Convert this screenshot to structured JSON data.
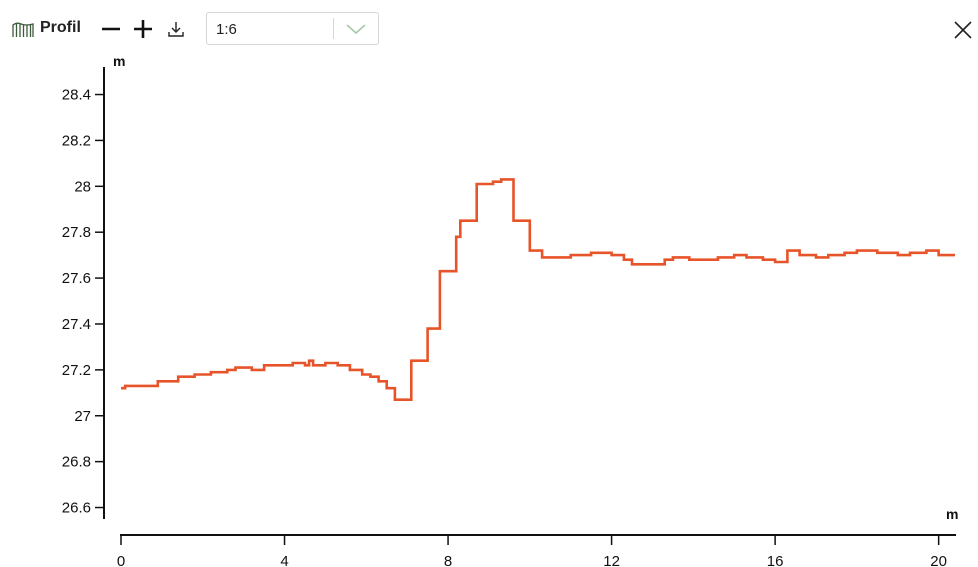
{
  "toolbar": {
    "title": "Profil",
    "title_icon": "profile-chart-icon",
    "zoom_out_icon": "minus-icon",
    "zoom_in_icon": "plus-icon",
    "download_icon": "download-icon",
    "scale_value": "1:6",
    "close_icon": "close-icon"
  },
  "colors": {
    "line": "#e8542a",
    "axis": "#111111",
    "chevron": "#a8c9a8"
  },
  "chart_data": {
    "type": "line",
    "title": "",
    "xlabel": "m",
    "ylabel": "m",
    "xlim": [
      0,
      20.4
    ],
    "ylim": [
      26.55,
      28.52
    ],
    "x_ticks": [
      0,
      4,
      8,
      12,
      16,
      20
    ],
    "x_tick_labels": [
      "0",
      "4",
      "8",
      "12",
      "16",
      "20"
    ],
    "y_ticks": [
      26.6,
      26.8,
      27.0,
      27.2,
      27.4,
      27.6,
      27.8,
      28.0,
      28.2,
      28.4
    ],
    "y_tick_labels": [
      "26.6",
      "26.8",
      "27",
      "27.2",
      "27.4",
      "27.6",
      "27.8",
      "28",
      "28.2",
      "28.4"
    ],
    "grid": false,
    "series": [
      {
        "step": true,
        "x": [
          0.0,
          0.1,
          0.5,
          0.9,
          1.3,
          1.4,
          1.8,
          2.2,
          2.6,
          2.8,
          3.2,
          3.5,
          3.9,
          4.2,
          4.5,
          4.6,
          4.7,
          5.0,
          5.3,
          5.6,
          5.9,
          6.1,
          6.3,
          6.5,
          6.7,
          7.1,
          7.5,
          7.8,
          8.0,
          8.2,
          8.3,
          8.4,
          8.7,
          9.1,
          9.3,
          9.6,
          10.0,
          10.3,
          11.0,
          11.5,
          12.0,
          12.3,
          12.5,
          13.0,
          13.3,
          13.5,
          13.9,
          14.2,
          14.6,
          15.0,
          15.3,
          15.7,
          16.0,
          16.3,
          16.6,
          17.0,
          17.3,
          17.7,
          18.0,
          18.5,
          19.0,
          19.3,
          19.7,
          20.0,
          20.4
        ],
        "y": [
          27.12,
          27.13,
          27.13,
          27.15,
          27.15,
          27.17,
          27.18,
          27.19,
          27.2,
          27.21,
          27.2,
          27.22,
          27.22,
          27.23,
          27.22,
          27.24,
          27.22,
          27.23,
          27.22,
          27.2,
          27.18,
          27.17,
          27.15,
          27.12,
          27.07,
          27.24,
          27.38,
          27.63,
          27.63,
          27.78,
          27.85,
          27.85,
          28.01,
          28.02,
          28.03,
          27.85,
          27.72,
          27.69,
          27.7,
          27.71,
          27.7,
          27.68,
          27.66,
          27.66,
          27.68,
          27.69,
          27.68,
          27.68,
          27.69,
          27.7,
          27.69,
          27.68,
          27.67,
          27.72,
          27.7,
          27.69,
          27.7,
          27.71,
          27.72,
          27.71,
          27.7,
          27.71,
          27.72,
          27.7,
          27.7
        ]
      }
    ]
  }
}
